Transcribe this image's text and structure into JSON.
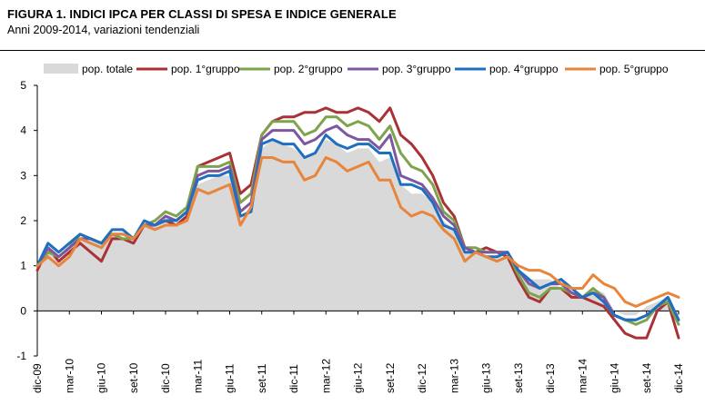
{
  "header": {
    "title": "FIGURA 1. INDICI IPCA PER CLASSI DI SPESA E INDICE GENERALE",
    "subtitle": "Anni 2009-2014, variazioni tendenziali"
  },
  "chart_data": {
    "type": "line",
    "title": "FIGURA 1. INDICI IPCA PER CLASSI DI SPESA E INDICE GENERALE",
    "subtitle": "Anni 2009-2014, variazioni tendenziali",
    "xlabel": "",
    "ylabel": "",
    "ylim": [
      -1,
      5
    ],
    "yticks": [
      -1,
      0,
      1,
      2,
      3,
      4,
      5
    ],
    "grid": false,
    "legend_position": "top",
    "x": [
      "dic-09",
      "gen-10",
      "feb-10",
      "mar-10",
      "apr-10",
      "mag-10",
      "giu-10",
      "lug-10",
      "ago-10",
      "set-10",
      "ott-10",
      "nov-10",
      "dic-10",
      "gen-11",
      "feb-11",
      "mar-11",
      "apr-11",
      "mag-11",
      "giu-11",
      "lug-11",
      "ago-11",
      "set-11",
      "ott-11",
      "nov-11",
      "dic-11",
      "gen-12",
      "feb-12",
      "mar-12",
      "apr-12",
      "mag-12",
      "giu-12",
      "lug-12",
      "ago-12",
      "set-12",
      "ott-12",
      "nov-12",
      "dic-12",
      "gen-13",
      "feb-13",
      "mar-13",
      "apr-13",
      "mag-13",
      "giu-13",
      "lug-13",
      "ago-13",
      "set-13",
      "ott-13",
      "nov-13",
      "dic-13",
      "gen-14",
      "feb-14",
      "mar-14",
      "apr-14",
      "mag-14",
      "giu-14",
      "lug-14",
      "ago-14",
      "set-14",
      "ott-14",
      "nov-14",
      "dic-14"
    ],
    "tick_labels": [
      "dic-09",
      "mar-10",
      "giu-10",
      "set-10",
      "dic-10",
      "mar-11",
      "giu-11",
      "set-11",
      "dic-11",
      "mar-12",
      "giu-12",
      "set-12",
      "dic-12",
      "mar-13",
      "giu-13",
      "set-13",
      "dic-13",
      "mar-14",
      "giu-14",
      "set-14",
      "dic-14"
    ],
    "series": [
      {
        "name": "pop. totale",
        "style": "area",
        "color": "#d9d9d9",
        "values": [
          1.1,
          1.3,
          1.1,
          1.4,
          1.6,
          1.6,
          1.5,
          1.7,
          1.6,
          1.6,
          1.9,
          1.9,
          2.1,
          1.9,
          2.1,
          2.8,
          2.9,
          3.0,
          3.0,
          2.1,
          2.3,
          3.6,
          3.8,
          3.7,
          3.6,
          3.4,
          3.5,
          3.8,
          3.7,
          3.5,
          3.6,
          3.6,
          3.3,
          3.4,
          2.8,
          2.6,
          2.6,
          2.4,
          2.0,
          1.8,
          1.3,
          1.3,
          1.2,
          1.2,
          1.2,
          0.9,
          0.7,
          0.7,
          0.7,
          0.5,
          0.4,
          0.3,
          0.5,
          0.4,
          0.0,
          -0.1,
          -0.1,
          0.1,
          0.2,
          0.3,
          -0.1
        ]
      },
      {
        "name": "pop. 1°gruppo",
        "color": "#a83236",
        "values": [
          0.9,
          1.4,
          1.1,
          1.3,
          1.5,
          1.3,
          1.1,
          1.6,
          1.6,
          1.5,
          1.9,
          1.9,
          2.0,
          1.9,
          2.1,
          3.2,
          3.3,
          3.4,
          3.5,
          2.6,
          2.8,
          3.9,
          4.2,
          4.3,
          4.3,
          4.4,
          4.4,
          4.5,
          4.4,
          4.4,
          4.5,
          4.4,
          4.2,
          4.5,
          3.9,
          3.7,
          3.4,
          3.0,
          2.4,
          2.1,
          1.4,
          1.3,
          1.4,
          1.3,
          1.2,
          0.7,
          0.3,
          0.2,
          0.5,
          0.5,
          0.3,
          0.3,
          0.2,
          0.1,
          -0.2,
          -0.5,
          -0.6,
          -0.6,
          0.0,
          0.2,
          -0.6
        ]
      },
      {
        "name": "pop. 2°gruppo",
        "color": "#7ea34d",
        "values": [
          1.0,
          1.3,
          1.2,
          1.4,
          1.7,
          1.6,
          1.5,
          1.7,
          1.6,
          1.6,
          1.9,
          2.0,
          2.2,
          2.1,
          2.3,
          3.2,
          3.2,
          3.2,
          3.3,
          2.4,
          2.6,
          3.9,
          4.2,
          4.2,
          4.2,
          3.9,
          4.0,
          4.3,
          4.3,
          4.1,
          4.2,
          4.1,
          3.8,
          4.1,
          3.5,
          3.2,
          3.1,
          2.8,
          2.2,
          2.0,
          1.4,
          1.4,
          1.3,
          1.3,
          1.3,
          0.8,
          0.4,
          0.3,
          0.5,
          0.5,
          0.4,
          0.3,
          0.5,
          0.3,
          -0.1,
          -0.2,
          -0.3,
          -0.2,
          0.1,
          0.2,
          -0.3
        ]
      },
      {
        "name": "pop. 3°gruppo",
        "color": "#7e57a1",
        "values": [
          1.0,
          1.4,
          1.2,
          1.4,
          1.6,
          1.6,
          1.5,
          1.7,
          1.7,
          1.6,
          1.9,
          1.9,
          2.1,
          2.0,
          2.2,
          3.0,
          3.1,
          3.1,
          3.2,
          2.2,
          2.4,
          3.8,
          4.0,
          4.0,
          4.0,
          3.7,
          3.8,
          4.0,
          4.1,
          3.9,
          3.8,
          3.8,
          3.6,
          3.9,
          3.0,
          2.9,
          2.8,
          2.5,
          2.1,
          1.9,
          1.4,
          1.3,
          1.3,
          1.3,
          1.3,
          0.9,
          0.6,
          0.5,
          0.6,
          0.6,
          0.4,
          0.3,
          0.4,
          0.3,
          -0.1,
          -0.2,
          -0.2,
          -0.1,
          0.1,
          0.3,
          -0.2
        ]
      },
      {
        "name": "pop. 4°gruppo",
        "color": "#1f6fbf",
        "values": [
          1.0,
          1.5,
          1.3,
          1.5,
          1.7,
          1.6,
          1.5,
          1.8,
          1.8,
          1.6,
          2.0,
          1.9,
          2.0,
          2.0,
          2.2,
          2.9,
          3.0,
          3.0,
          3.1,
          2.1,
          2.2,
          3.7,
          3.8,
          3.7,
          3.7,
          3.4,
          3.5,
          3.9,
          3.7,
          3.6,
          3.7,
          3.7,
          3.5,
          3.5,
          2.8,
          2.8,
          2.7,
          2.4,
          1.9,
          1.8,
          1.3,
          1.3,
          1.2,
          1.2,
          1.3,
          0.9,
          0.7,
          0.5,
          0.6,
          0.7,
          0.5,
          0.3,
          0.4,
          0.2,
          -0.1,
          -0.2,
          -0.2,
          -0.1,
          0.1,
          0.3,
          -0.2
        ]
      },
      {
        "name": "pop. 5°gruppo",
        "color": "#e8853a",
        "values": [
          1.0,
          1.2,
          1.0,
          1.2,
          1.6,
          1.5,
          1.4,
          1.7,
          1.7,
          1.6,
          1.9,
          1.8,
          1.9,
          1.9,
          2.0,
          2.7,
          2.6,
          2.7,
          2.8,
          1.9,
          2.3,
          3.4,
          3.4,
          3.3,
          3.3,
          2.9,
          3.0,
          3.4,
          3.3,
          3.1,
          3.2,
          3.3,
          2.9,
          2.9,
          2.3,
          2.1,
          2.2,
          2.1,
          1.8,
          1.6,
          1.1,
          1.3,
          1.2,
          1.1,
          1.2,
          1.0,
          0.9,
          0.9,
          0.8,
          0.6,
          0.5,
          0.5,
          0.8,
          0.6,
          0.5,
          0.2,
          0.1,
          0.2,
          0.3,
          0.4,
          0.3
        ]
      }
    ]
  }
}
